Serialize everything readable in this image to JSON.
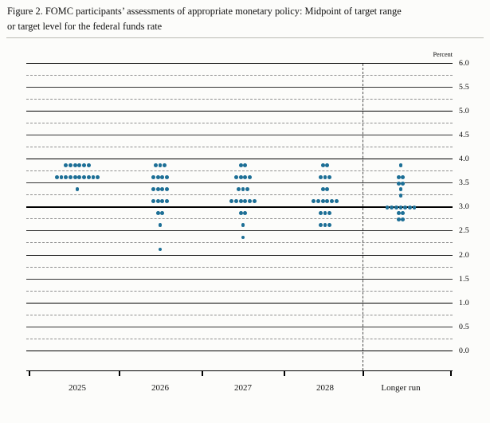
{
  "figure": {
    "title_line1": "Figure 2. FOMC participants’ assessments of appropriate monetary policy: Midpoint of target range",
    "title_line2": "or target level for the federal funds rate"
  },
  "chart_data": {
    "type": "scatter",
    "title": "FOMC participants’ assessments of appropriate monetary policy: Midpoint of target range or target level for the federal funds rate",
    "ylabel": "Percent",
    "ylim": [
      0.0,
      6.0
    ],
    "y_tick_step": 0.5,
    "gridline_step": 0.25,
    "grid_on": true,
    "legend": "none",
    "y_tick_labels": [
      "6.0",
      "5.5",
      "5.0",
      "4.5",
      "4.0",
      "3.5",
      "3.0",
      "2.5",
      "2.0",
      "1.5",
      "1.0",
      "0.5",
      "0.0"
    ],
    "categories": [
      "2025",
      "2026",
      "2027",
      "2028",
      "Longer run"
    ],
    "series": [
      {
        "name": "2025",
        "dots": [
          {
            "rate": 3.875,
            "count": 6
          },
          {
            "rate": 3.625,
            "count": 10
          },
          {
            "rate": 3.375,
            "count": 1
          }
        ]
      },
      {
        "name": "2026",
        "dots": [
          {
            "rate": 3.875,
            "count": 3
          },
          {
            "rate": 3.625,
            "count": 4
          },
          {
            "rate": 3.375,
            "count": 4
          },
          {
            "rate": 3.125,
            "count": 4
          },
          {
            "rate": 2.875,
            "count": 2
          },
          {
            "rate": 2.625,
            "count": 1
          },
          {
            "rate": 2.125,
            "count": 1
          }
        ]
      },
      {
        "name": "2027",
        "dots": [
          {
            "rate": 3.875,
            "count": 2
          },
          {
            "rate": 3.625,
            "count": 4
          },
          {
            "rate": 3.375,
            "count": 3
          },
          {
            "rate": 3.125,
            "count": 6
          },
          {
            "rate": 2.875,
            "count": 2
          },
          {
            "rate": 2.625,
            "count": 1
          },
          {
            "rate": 2.375,
            "count": 1
          }
        ]
      },
      {
        "name": "2028",
        "dots": [
          {
            "rate": 3.875,
            "count": 2
          },
          {
            "rate": 3.625,
            "count": 3
          },
          {
            "rate": 3.375,
            "count": 2
          },
          {
            "rate": 3.125,
            "count": 6
          },
          {
            "rate": 2.875,
            "count": 3
          },
          {
            "rate": 2.625,
            "count": 3
          }
        ]
      },
      {
        "name": "Longer run",
        "dots": [
          {
            "rate": 3.875,
            "count": 1
          },
          {
            "rate": 3.625,
            "count": 2
          },
          {
            "rate": 3.5,
            "count": 2
          },
          {
            "rate": 3.375,
            "count": 1
          },
          {
            "rate": 3.25,
            "count": 1
          },
          {
            "rate": 3.0,
            "count": 7
          },
          {
            "rate": 2.875,
            "count": 2
          },
          {
            "rate": 2.75,
            "count": 2
          }
        ]
      }
    ],
    "dot_color": "#1d6f96",
    "bold_gridline": 3.0,
    "separator_before_category": "Longer run"
  }
}
